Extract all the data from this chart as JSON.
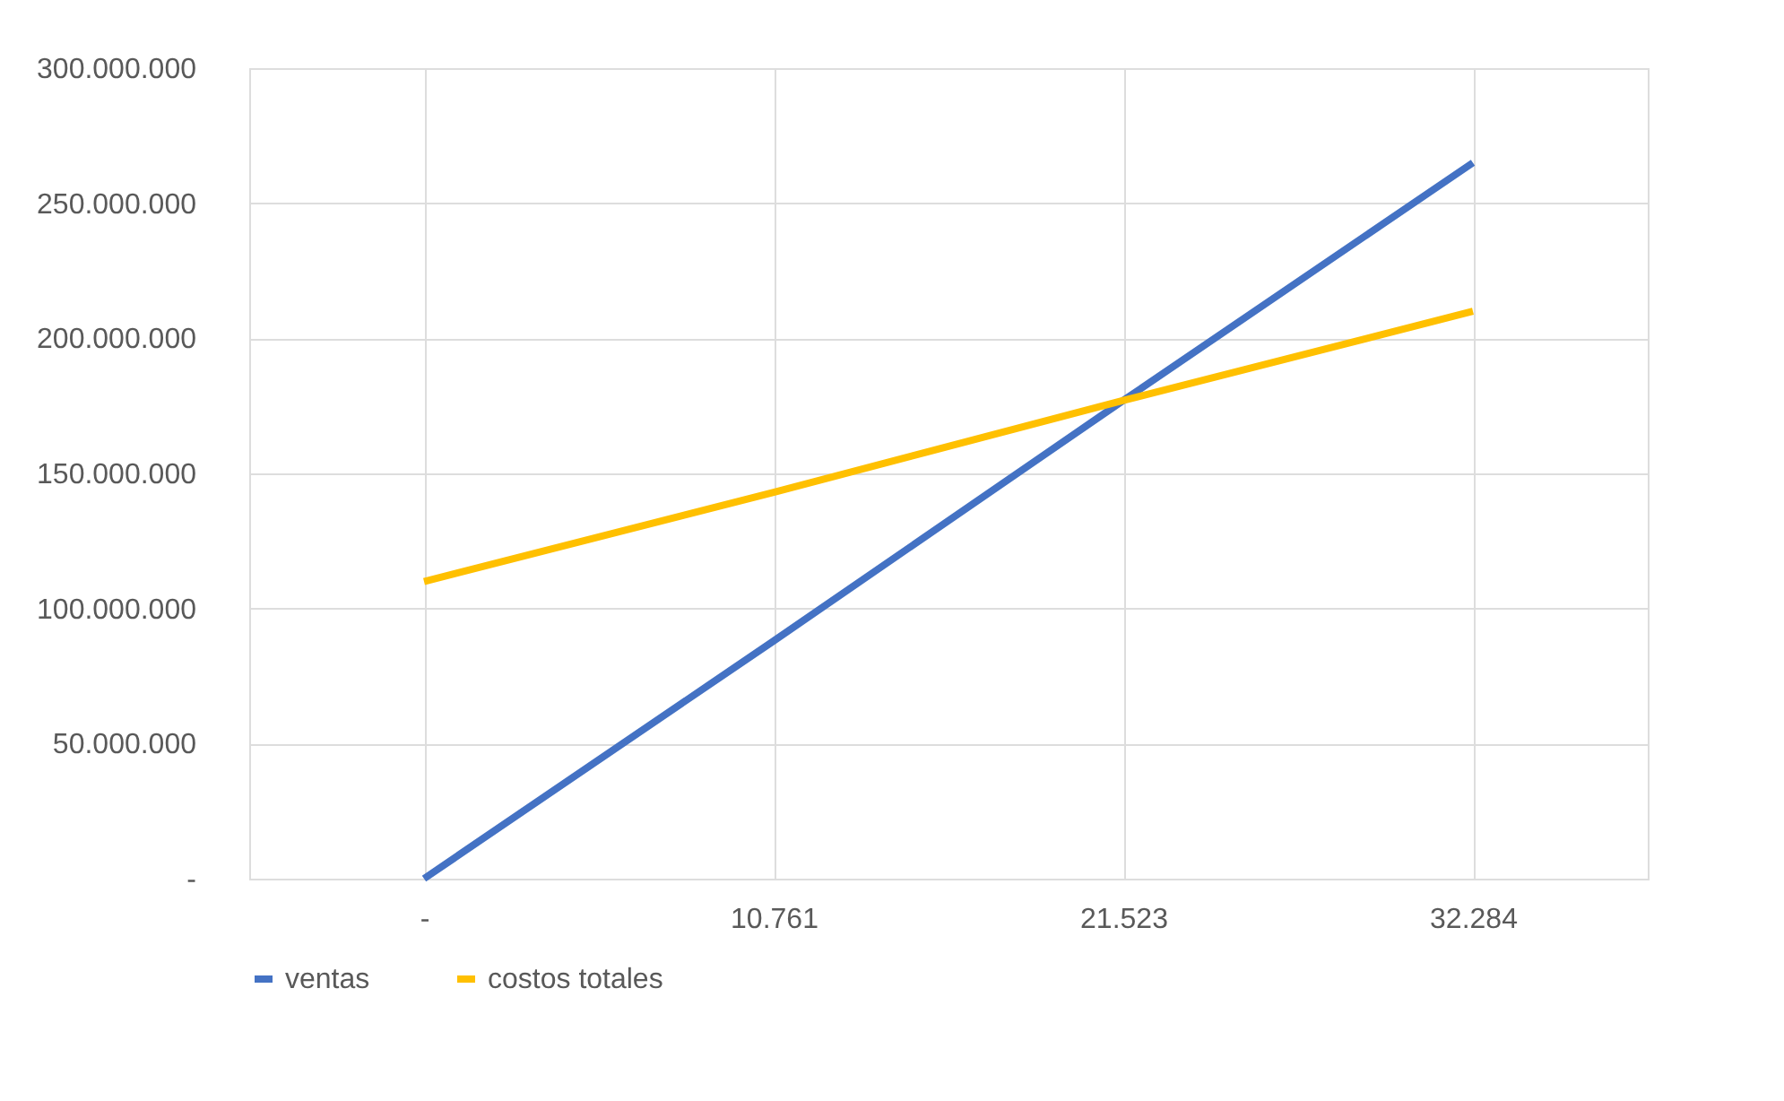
{
  "chart_data": {
    "type": "line",
    "categories": [
      "-",
      "10.761",
      "21.523",
      "32.284"
    ],
    "series": [
      {
        "name": "ventas",
        "color": "#4472c4",
        "values": [
          0,
          88000000,
          177000000,
          265000000
        ]
      },
      {
        "name": "costos totales",
        "color": "#ffc000",
        "values": [
          110000000,
          143000000,
          177000000,
          210000000
        ]
      }
    ],
    "ylim": [
      0,
      300000000
    ],
    "yticks": [
      {
        "value": 0,
        "label": "-"
      },
      {
        "value": 50000000,
        "label": "50.000.000"
      },
      {
        "value": 100000000,
        "label": "100.000.000"
      },
      {
        "value": 150000000,
        "label": "150.000.000"
      },
      {
        "value": 200000000,
        "label": "200.000.000"
      },
      {
        "value": 250000000,
        "label": "250.000.000"
      },
      {
        "value": 300000000,
        "label": "300.000.000"
      }
    ],
    "grid": true,
    "legend": "bottom",
    "marker": "none",
    "line_style": "solid"
  }
}
